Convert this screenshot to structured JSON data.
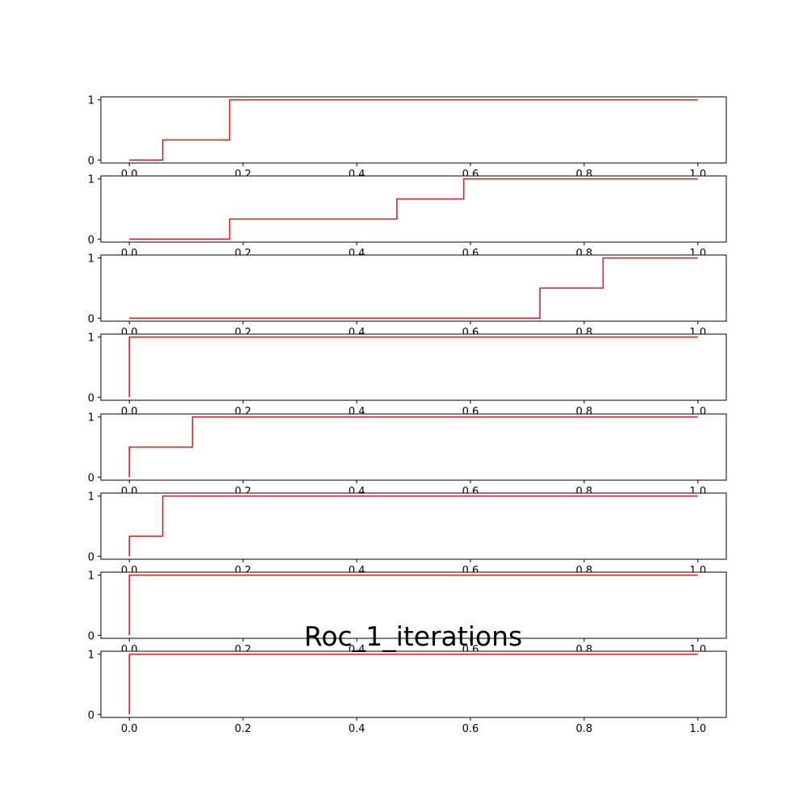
{
  "title": "Roc_1_iterations",
  "chart_data": [
    {
      "type": "line",
      "step": "post",
      "color": "#d62728",
      "x": [
        0.0,
        0.0588,
        0.0588,
        0.1765,
        0.1765,
        1.0
      ],
      "y": [
        0,
        0,
        0.333,
        0.333,
        1,
        1
      ],
      "xlim": [
        -0.05,
        1.05
      ],
      "ylim": [
        -0.05,
        1.05
      ],
      "xticks": [
        "0.0",
        "0.2",
        "0.4",
        "0.6",
        "0.8",
        "1.0"
      ],
      "yticks": [
        "0",
        "1"
      ]
    },
    {
      "type": "line",
      "step": "post",
      "color": "#d62728",
      "x": [
        0.0,
        0.1765,
        0.1765,
        0.4706,
        0.4706,
        0.5882,
        0.5882,
        1.0
      ],
      "y": [
        0,
        0,
        0.333,
        0.333,
        0.667,
        0.667,
        1,
        1
      ],
      "xlim": [
        -0.05,
        1.05
      ],
      "ylim": [
        -0.05,
        1.05
      ],
      "xticks": [
        "0.0",
        "0.2",
        "0.4",
        "0.6",
        "0.8",
        "1.0"
      ],
      "yticks": [
        "0",
        "1"
      ]
    },
    {
      "type": "line",
      "step": "post",
      "color": "#d62728",
      "x": [
        0.0,
        0.7222,
        0.7222,
        0.8333,
        0.8333,
        1.0
      ],
      "y": [
        0,
        0,
        0.5,
        0.5,
        1,
        1
      ],
      "xlim": [
        -0.05,
        1.05
      ],
      "ylim": [
        -0.05,
        1.05
      ],
      "xticks": [
        "0.0",
        "0.2",
        "0.4",
        "0.6",
        "0.8",
        "1.0"
      ],
      "yticks": [
        "0",
        "1"
      ]
    },
    {
      "type": "line",
      "step": "post",
      "color": "#d62728",
      "x": [
        0.0,
        0.0,
        1.0
      ],
      "y": [
        0,
        1,
        1
      ],
      "xlim": [
        -0.05,
        1.05
      ],
      "ylim": [
        -0.05,
        1.05
      ],
      "xticks": [
        "0.0",
        "0.2",
        "0.4",
        "0.6",
        "0.8",
        "1.0"
      ],
      "yticks": [
        "0",
        "1"
      ]
    },
    {
      "type": "line",
      "step": "post",
      "color": "#d62728",
      "x": [
        0.0,
        0.0,
        0.1111,
        0.1111,
        1.0
      ],
      "y": [
        0,
        0.5,
        0.5,
        1,
        1
      ],
      "xlim": [
        -0.05,
        1.05
      ],
      "ylim": [
        -0.05,
        1.05
      ],
      "xticks": [
        "0.0",
        "0.2",
        "0.4",
        "0.6",
        "0.8",
        "1.0"
      ],
      "yticks": [
        "0",
        "1"
      ]
    },
    {
      "type": "line",
      "step": "post",
      "color": "#d62728",
      "x": [
        0.0,
        0.0,
        0.0588,
        0.0588,
        1.0
      ],
      "y": [
        0,
        0.333,
        0.333,
        1,
        1
      ],
      "xlim": [
        -0.05,
        1.05
      ],
      "ylim": [
        -0.05,
        1.05
      ],
      "xticks": [
        "0.0",
        "0.2",
        "0.4",
        "0.6",
        "0.8",
        "1.0"
      ],
      "yticks": [
        "0",
        "1"
      ]
    },
    {
      "type": "line",
      "step": "post",
      "color": "#d62728",
      "x": [
        0.0,
        0.0,
        1.0
      ],
      "y": [
        0,
        1,
        1
      ],
      "xlim": [
        -0.05,
        1.05
      ],
      "ylim": [
        -0.05,
        1.05
      ],
      "xticks": [
        "0.0",
        "0.2",
        "0.4",
        "0.6",
        "0.8",
        "1.0"
      ],
      "yticks": [
        "0",
        "1"
      ]
    },
    {
      "type": "line",
      "step": "post",
      "color": "#d62728",
      "x": [
        0.0,
        0.0,
        1.0
      ],
      "y": [
        0,
        1,
        1
      ],
      "xlim": [
        -0.05,
        1.05
      ],
      "ylim": [
        -0.05,
        1.05
      ],
      "xticks": [
        "0.0",
        "0.2",
        "0.4",
        "0.6",
        "0.8",
        "1.0"
      ],
      "yticks": [
        "0",
        "1"
      ]
    }
  ]
}
